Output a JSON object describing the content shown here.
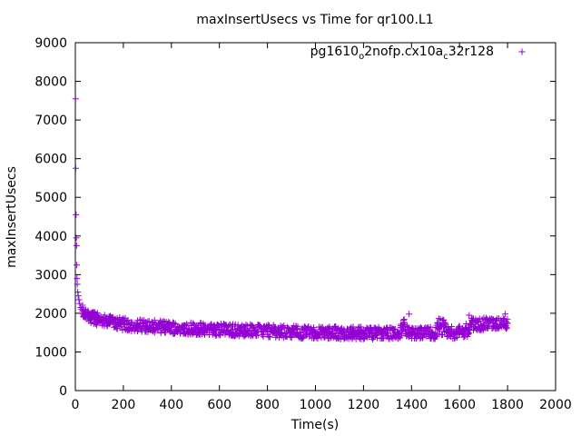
{
  "chart_data": {
    "type": "scatter",
    "title": "maxInsertUsecs vs Time for qr100.L1",
    "xlabel": "Time(s)",
    "ylabel": "maxInsertUsecs",
    "xlim": [
      0,
      2000
    ],
    "ylim": [
      0,
      9000
    ],
    "xticks": [
      "0",
      "200",
      "400",
      "600",
      "800",
      "1000",
      "1200",
      "1400",
      "1600",
      "1800",
      "2000"
    ],
    "yticks": [
      "0",
      "1000",
      "2000",
      "3000",
      "4000",
      "5000",
      "6000",
      "7000",
      "8000",
      "9000"
    ],
    "grid": false,
    "legend_position": "top-right",
    "series": [
      {
        "name": "pg1610_o2nofp.cx10a_c32r128",
        "legend_main": "pg1610",
        "legend_sub1": "o",
        "legend_mid": "2nofp.cx10a",
        "legend_sub2": "c",
        "legend_tail": "32r128",
        "color": "#9400d3",
        "marker": "plus",
        "points": [
          [
            1,
            7550
          ],
          [
            2,
            5750
          ],
          [
            3,
            4550
          ],
          [
            4,
            3950
          ],
          [
            5,
            3750
          ],
          [
            6,
            3250
          ],
          [
            7,
            2900
          ],
          [
            8,
            2750
          ],
          [
            10,
            2550
          ],
          [
            12,
            2450
          ],
          [
            15,
            2350
          ],
          [
            18,
            2250
          ],
          [
            22,
            2150
          ],
          [
            26,
            2100
          ],
          [
            30,
            2050
          ],
          [
            35,
            2000
          ],
          [
            40,
            1980
          ],
          [
            50,
            1950
          ],
          [
            60,
            1920
          ],
          [
            70,
            1900
          ],
          [
            80,
            1870
          ],
          [
            90,
            1850
          ],
          [
            100,
            1830
          ],
          [
            110,
            1810
          ],
          [
            120,
            1800
          ],
          [
            140,
            1780
          ],
          [
            160,
            1760
          ],
          [
            180,
            1740
          ],
          [
            200,
            1720
          ],
          [
            230,
            1700
          ],
          [
            260,
            1690
          ],
          [
            300,
            1670
          ],
          [
            350,
            1650
          ],
          [
            400,
            1630
          ],
          [
            450,
            1610
          ],
          [
            500,
            1600
          ],
          [
            550,
            1590
          ],
          [
            600,
            1580
          ],
          [
            650,
            1570
          ],
          [
            700,
            1560
          ],
          [
            750,
            1550
          ],
          [
            800,
            1540
          ],
          [
            850,
            1530
          ],
          [
            900,
            1520
          ],
          [
            950,
            1510
          ],
          [
            1000,
            1505
          ],
          [
            1050,
            1500
          ],
          [
            1100,
            1495
          ],
          [
            1150,
            1490
          ],
          [
            1200,
            1490
          ],
          [
            1250,
            1485
          ],
          [
            1300,
            1480
          ],
          [
            1350,
            1480
          ],
          [
            1390,
            1980
          ],
          [
            1400,
            1480
          ],
          [
            1450,
            1485
          ],
          [
            1500,
            1490
          ],
          [
            1520,
            1850
          ],
          [
            1550,
            1500
          ],
          [
            1600,
            1510
          ],
          [
            1620,
            1480
          ],
          [
            1640,
            1950
          ],
          [
            1650,
            1700
          ],
          [
            1700,
            1720
          ],
          [
            1750,
            1730
          ],
          [
            1790,
            1980
          ],
          [
            1800,
            1740
          ]
        ]
      }
    ]
  }
}
